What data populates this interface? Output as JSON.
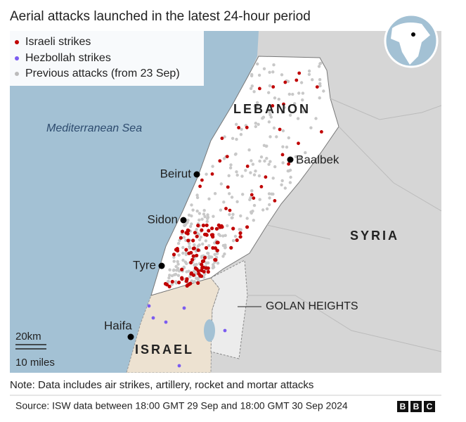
{
  "title": "Aerial attacks launched in the latest 24-hour period",
  "legend": [
    "Israeli strikes",
    "Hezbollah strikes",
    "Previous attacks (from 23 Sep)"
  ],
  "places": {
    "lebanon": "LEBANON",
    "sea": "Mediterranean Sea",
    "beirut": "Beirut",
    "sidon": "Sidon",
    "tyre": "Tyre",
    "haifa": "Haifa",
    "baalbek": "Baalbek",
    "syria": "SYRIA",
    "golan": "GOLAN HEIGHTS",
    "israel": "ISRAEL"
  },
  "scale": {
    "km": "20km",
    "miles": "10 miles"
  },
  "note": "Note: Data includes air strikes, artillery, rocket and mortar attacks",
  "source": "Source: ISW data between 18:00 GMT 29 Sep and 18:00 GMT 30 Sep 2024",
  "logo": [
    "B",
    "B",
    "C"
  ]
}
